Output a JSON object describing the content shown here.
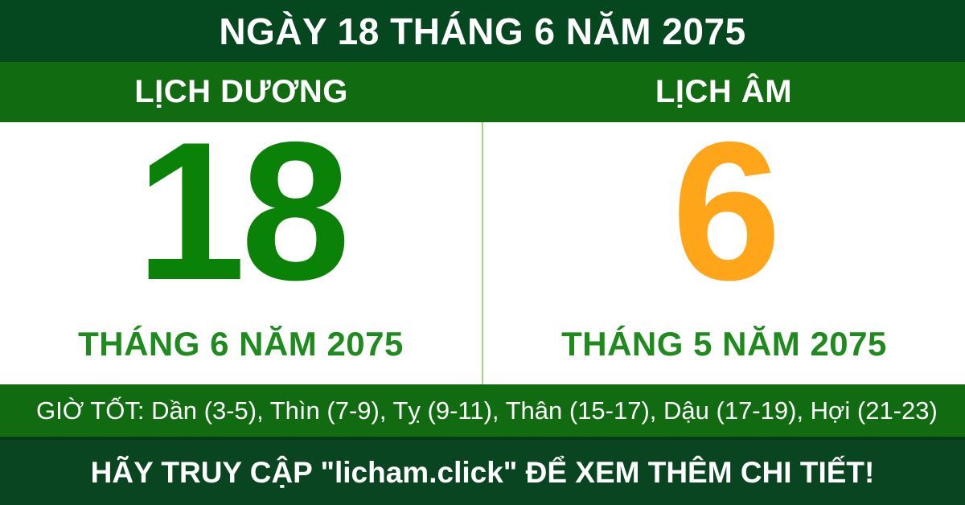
{
  "header": {
    "title": "NGÀY 18 THÁNG 6 NĂM 2075"
  },
  "calendars": {
    "solar": {
      "label": "LỊCH DƯƠNG",
      "day": "18",
      "month_year": "THÁNG 6 NĂM 2075",
      "day_color": "#0a8208"
    },
    "lunar": {
      "label": "LỊCH ÂM",
      "day": "6",
      "month_year": "THÁNG 5 NĂM 2075",
      "day_color": "#ffa519"
    }
  },
  "good_hours": {
    "text": "GIỜ TỐT: Dần (3-5), Thìn (7-9), Tỵ (9-11), Thân (15-17), Dậu (17-19), Hợi (21-23)"
  },
  "footer": {
    "text": "HÃY TRUY CẬP \"licham.click\" ĐỂ XEM THÊM CHI TIẾT!"
  },
  "colors": {
    "header_bg": "#05481f",
    "subheader_bg": "#116b10",
    "good_hours_bg": "#116b10",
    "footer_bg": "#0a4522",
    "month_text": "#1f8a1d",
    "divider": "#a5d878"
  }
}
